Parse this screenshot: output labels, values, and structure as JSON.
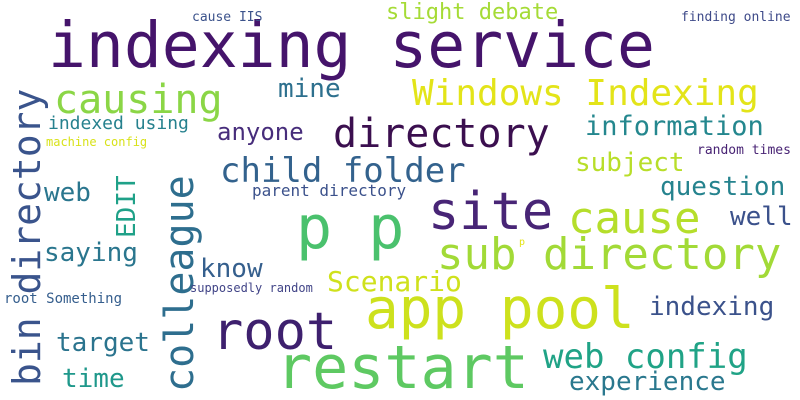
{
  "words": [
    {
      "text": "indexing service",
      "color": "#45146b"
    },
    {
      "text": "app pool",
      "color": "#cde11d"
    },
    {
      "text": "restart",
      "color": "#5ec962"
    },
    {
      "text": "root",
      "color": "#3e206e"
    },
    {
      "text": "site",
      "color": "#482576"
    },
    {
      "text": "p p",
      "color": "#4ac16d"
    },
    {
      "text": "directory",
      "color": "#3b0f4f"
    },
    {
      "text": "sub directory",
      "color": "#a2da37"
    },
    {
      "text": "cause",
      "color": "#b5de2b"
    },
    {
      "text": "Windows Indexing",
      "color": "#e3e419"
    },
    {
      "text": "causing",
      "color": "#8bd646"
    },
    {
      "text": "bin directory",
      "color": "#3a548c"
    },
    {
      "text": "colleague",
      "color": "#2e6e8e"
    },
    {
      "text": "child folder",
      "color": "#33628d"
    },
    {
      "text": "web config",
      "color": "#20a386"
    },
    {
      "text": "Scenario",
      "color": "#cfe11c"
    },
    {
      "text": "information",
      "color": "#24878e"
    },
    {
      "text": "question",
      "color": "#25838e"
    },
    {
      "text": "indexing",
      "color": "#3b528b"
    },
    {
      "text": "experience",
      "color": "#2a788e"
    },
    {
      "text": "subject",
      "color": "#b8de29"
    },
    {
      "text": "anyone",
      "color": "#472d7b"
    },
    {
      "text": "mine",
      "color": "#2d708e"
    },
    {
      "text": "well",
      "color": "#3b518b"
    },
    {
      "text": "saying",
      "color": "#2a768e"
    },
    {
      "text": "know",
      "color": "#355f8d"
    },
    {
      "text": "target",
      "color": "#2b748e"
    },
    {
      "text": "time",
      "color": "#1f988b"
    },
    {
      "text": "web",
      "color": "#2a768e"
    },
    {
      "text": "EDIT",
      "color": "#1fa188"
    },
    {
      "text": "slight debate",
      "color": "#a5db36"
    },
    {
      "text": "indexed using",
      "color": "#26818e"
    },
    {
      "text": "parent directory",
      "color": "#3b518b"
    },
    {
      "text": "random times",
      "color": "#482374"
    },
    {
      "text": "finding online",
      "color": "#3e4a89"
    },
    {
      "text": "cause IIS",
      "color": "#3b528b"
    },
    {
      "text": "machine config",
      "color": "#d8e219"
    },
    {
      "text": "root Something",
      "color": "#355e8d"
    },
    {
      "text": "supposedly random",
      "color": "#414487"
    },
    {
      "text": "p",
      "color": "#e5e419"
    }
  ]
}
